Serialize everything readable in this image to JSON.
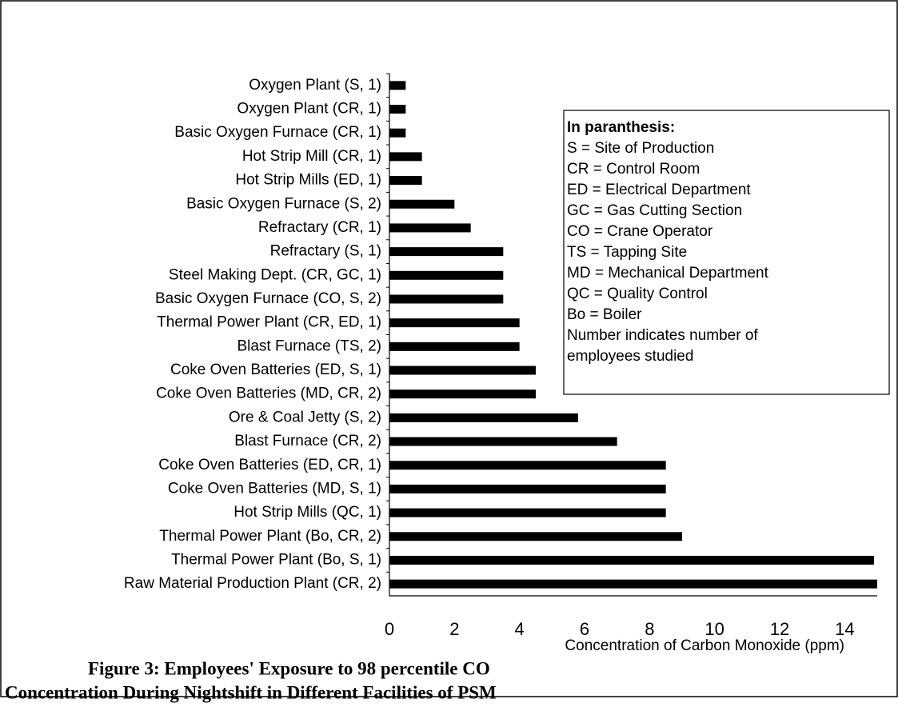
{
  "chart_data": {
    "type": "barh",
    "categories": [
      "Oxygen Plant (S, 1)",
      "Oxygen Plant (CR, 1)",
      "Basic Oxygen Furnace (CR, 1)",
      "Hot Strip Mill (CR, 1)",
      "Hot Strip Mills (ED, 1)",
      "Basic Oxygen Furnace (S, 2)",
      "Refractary (CR, 1)",
      "Refractary (S, 1)",
      "Steel Making Dept. (CR, GC, 1)",
      "Basic Oxygen Furnace (CO, S, 2)",
      "Thermal Power Plant (CR, ED, 1)",
      "Blast Furnace (TS, 2)",
      "Coke Oven Batteries (ED, S, 1)",
      "Coke Oven Batteries (MD, CR, 2)",
      "Ore & Coal Jetty (S, 2)",
      "Blast Furnace (CR, 2)",
      "Coke Oven Batteries (ED, CR, 1)",
      "Coke Oven Batteries (MD, S, 1)",
      "Hot Strip Mills (QC, 1)",
      "Thermal Power Plant (Bo, CR, 2)",
      "Thermal Power Plant (Bo, S, 1)",
      "Raw Material Production Plant (CR, 2)"
    ],
    "values": [
      0.5,
      0.5,
      0.5,
      1,
      1,
      2,
      2.5,
      3.5,
      3.5,
      3.5,
      4,
      4,
      4.5,
      4.5,
      5.8,
      7,
      8.5,
      8.5,
      8.5,
      9,
      14.9,
      15
    ],
    "color": "#000000",
    "xlim": [
      0,
      15
    ],
    "xticks": [
      0,
      2,
      4,
      6,
      8,
      10,
      12,
      14
    ],
    "xlabel": "Concentration of Carbon Monoxide (ppm)",
    "note": {
      "title": "In paranthesis:",
      "lines": [
        "S = Site of Production",
        "CR = Control Room",
        "ED = Electrical Department",
        "GC = Gas Cutting Section",
        "CO = Crane Operator",
        "TS = Tapping Site",
        "MD = Mechanical Department",
        "QC = Quality Control",
        "Bo = Boiler",
        "Number indicates number of",
        "employees studied"
      ]
    },
    "caption": [
      "Figure 3: Employees' Exposure to 98 percentile CO",
      "Concentration During Nightshift in Different Facilities of PSM"
    ]
  }
}
